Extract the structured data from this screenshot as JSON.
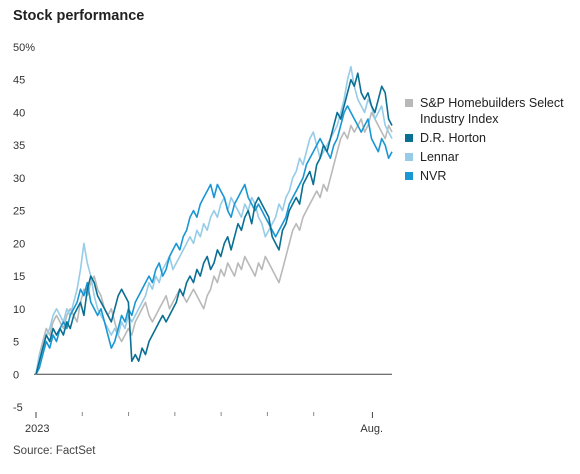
{
  "chart_data": {
    "type": "line",
    "title": "Stock performance",
    "source": "Source: FactSet",
    "y_ticks": [
      "50%",
      "45",
      "40",
      "35",
      "30",
      "25",
      "20",
      "15",
      "10",
      "5",
      "0",
      "-5"
    ],
    "y_tick_values": [
      50,
      45,
      40,
      35,
      30,
      25,
      20,
      15,
      10,
      5,
      0,
      -5
    ],
    "ylim": [
      -5,
      50
    ],
    "x_ticks": [
      "2023",
      "Aug."
    ],
    "x_tick_positions": [
      0,
      0.945
    ],
    "legend_position": "right",
    "grid": false,
    "series": [
      {
        "name": "S&P Homebuilders Select Industry Index",
        "color": "#b9b9b9",
        "values": [
          0,
          3,
          5,
          7,
          6,
          8,
          9,
          8,
          7,
          9,
          10,
          9,
          8,
          11,
          13,
          12,
          14,
          15,
          13,
          12,
          10,
          9,
          10,
          8,
          6,
          5,
          6,
          7,
          6,
          8,
          9,
          10,
          11,
          9,
          8,
          9,
          10,
          11,
          12,
          10,
          11,
          12,
          13,
          12,
          11,
          12,
          13,
          12,
          11,
          10,
          12,
          13,
          15,
          14,
          16,
          15,
          17,
          16,
          15,
          17,
          16,
          18,
          17,
          16,
          15,
          17,
          16,
          18,
          17,
          16,
          15,
          14,
          16,
          18,
          20,
          22,
          23,
          22,
          24,
          25,
          26,
          27,
          28,
          27,
          29,
          28,
          30,
          32,
          34,
          36,
          37,
          36,
          38,
          37,
          38,
          39,
          37,
          38,
          40,
          39,
          38,
          37,
          36,
          38,
          37
        ]
      },
      {
        "name": "D.R. Horton",
        "color": "#0a6f93",
        "values": [
          0,
          2,
          4,
          6,
          5,
          7,
          6,
          7,
          6,
          8,
          7,
          9,
          10,
          11,
          9,
          13,
          15,
          14,
          12,
          11,
          10,
          9,
          8,
          10,
          12,
          13,
          12,
          11,
          2,
          3,
          2,
          4,
          3,
          5,
          6,
          7,
          8,
          9,
          8,
          9,
          10,
          11,
          13,
          12,
          14,
          15,
          14,
          16,
          15,
          17,
          18,
          16,
          17,
          19,
          18,
          20,
          21,
          19,
          21,
          23,
          22,
          24,
          25,
          23,
          26,
          27,
          26,
          25,
          24,
          21,
          20,
          19,
          22,
          23,
          25,
          26,
          27,
          26,
          29,
          30,
          31,
          29,
          32,
          33,
          35,
          34,
          36,
          38,
          40,
          39,
          41,
          43,
          45,
          44,
          46,
          43,
          42,
          43,
          41,
          40,
          42,
          44,
          43,
          39,
          38
        ]
      },
      {
        "name": "Lennar",
        "color": "#96cce7",
        "values": [
          0,
          3,
          4,
          6,
          7,
          9,
          10,
          9,
          8,
          10,
          9,
          11,
          13,
          16,
          20,
          17,
          15,
          12,
          10,
          9,
          8,
          7,
          6,
          7,
          6,
          8,
          7,
          9,
          8,
          9,
          10,
          11,
          12,
          14,
          13,
          15,
          14,
          16,
          17,
          18,
          16,
          17,
          18,
          19,
          20,
          21,
          20,
          22,
          21,
          23,
          22,
          24,
          25,
          24,
          26,
          27,
          25,
          27,
          26,
          25,
          24,
          26,
          25,
          27,
          26,
          24,
          23,
          21,
          22,
          23,
          24,
          26,
          25,
          27,
          28,
          30,
          31,
          33,
          32,
          34,
          36,
          37,
          35,
          33,
          34,
          35,
          36,
          37,
          38,
          40,
          42,
          45,
          47,
          44,
          42,
          41,
          40,
          42,
          41,
          39,
          40,
          41,
          38,
          37,
          36
        ]
      },
      {
        "name": "NVR",
        "color": "#1a97d3",
        "values": [
          0,
          1,
          3,
          5,
          4,
          6,
          5,
          7,
          8,
          7,
          9,
          10,
          11,
          13,
          12,
          14,
          11,
          10,
          9,
          10,
          8,
          6,
          4,
          5,
          7,
          9,
          8,
          10,
          9,
          11,
          12,
          13,
          14,
          15,
          14,
          16,
          17,
          15,
          16,
          18,
          19,
          20,
          19,
          21,
          22,
          24,
          25,
          24,
          26,
          27,
          28,
          29,
          27,
          29,
          28,
          27,
          25,
          24,
          26,
          27,
          28,
          29,
          27,
          26,
          25,
          26,
          25,
          24,
          23,
          22,
          21,
          22,
          23,
          24,
          26,
          27,
          28,
          29,
          30,
          32,
          33,
          34,
          35,
          36,
          35,
          34,
          33,
          35,
          36,
          38,
          40,
          41,
          40,
          39,
          38,
          37,
          38,
          39,
          36,
          35,
          34,
          36,
          35,
          33,
          34
        ]
      }
    ]
  }
}
